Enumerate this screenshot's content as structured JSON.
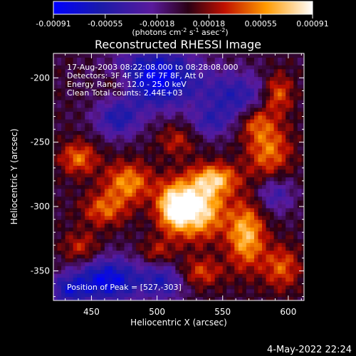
{
  "chart_data": {
    "type": "heatmap",
    "title": "Reconstructed RHESSI Image",
    "xlabel": "Heliocentric X (arcsec)",
    "ylabel": "Heliocentric Y (arcsec)",
    "xlim": [
      421,
      612
    ],
    "ylim": [
      -373,
      -181
    ],
    "x_ticks": [
      450,
      500,
      550,
      600
    ],
    "y_ticks": [
      -200,
      -250,
      -300,
      -350
    ],
    "colorbar": {
      "ticks": [
        "-0.00091",
        "-0.00055",
        "-0.00018",
        "0.00018",
        "0.00055",
        "0.00091"
      ],
      "range": [
        -0.00091,
        0.00091
      ],
      "unit_label": "(photons cm",
      "unit_sup1": "-2",
      "unit_mid1": " s",
      "unit_sup2": "-1",
      "unit_mid2": " asec",
      "unit_sup3": "-2",
      "unit_end": ")"
    },
    "info_lines": [
      "17-Aug-2003 08:22:08.000 to 08:28:08.000",
      "Detectors: 3F 4F 5F 6F 7F 8F, Att 0",
      "Energy Range: 12.0 - 25.0 keV",
      "Clean     Total counts: 2.44E+03"
    ],
    "peak_label": "Position of Peak = [527,-303]",
    "peak": [
      527,
      -303
    ],
    "grid": false,
    "sources": [
      {
        "x": 531,
        "y": -301,
        "amp": 0.00091,
        "sx": 14,
        "sy": 16
      },
      {
        "x": 512,
        "y": -300,
        "amp": 0.00072,
        "sx": 9,
        "sy": 13
      },
      {
        "x": 568,
        "y": -322,
        "amp": 0.0007,
        "sx": 10,
        "sy": 18
      },
      {
        "x": 545,
        "y": -278,
        "amp": 0.0006,
        "sx": 12,
        "sy": 8
      },
      {
        "x": 478,
        "y": -281,
        "amp": 0.00058,
        "sx": 13,
        "sy": 11
      },
      {
        "x": 440,
        "y": -262,
        "amp": 0.0005,
        "sx": 10,
        "sy": 9
      },
      {
        "x": 460,
        "y": -302,
        "amp": 0.00046,
        "sx": 12,
        "sy": 9
      },
      {
        "x": 585,
        "y": -256,
        "amp": 0.00052,
        "sx": 12,
        "sy": 16
      },
      {
        "x": 592,
        "y": -212,
        "amp": 0.0005,
        "sx": 8,
        "sy": 11
      },
      {
        "x": 575,
        "y": -233,
        "amp": 0.00042,
        "sx": 9,
        "sy": 9
      },
      {
        "x": 533,
        "y": -351,
        "amp": 0.0004,
        "sx": 12,
        "sy": 8
      },
      {
        "x": 595,
        "y": -347,
        "amp": 0.00045,
        "sx": 10,
        "sy": 12
      },
      {
        "x": 442,
        "y": -332,
        "amp": 0.00035,
        "sx": 10,
        "sy": 9
      },
      {
        "x": 470,
        "y": -205,
        "amp": 0.0003,
        "sx": 9,
        "sy": 8
      },
      {
        "x": 515,
        "y": -248,
        "amp": 0.0003,
        "sx": 10,
        "sy": 9
      },
      {
        "x": 500,
        "y": -335,
        "amp": 0.0003,
        "sx": 9,
        "sy": 7
      },
      {
        "x": 500,
        "y": -200,
        "amp": -0.00085,
        "sx": 22,
        "sy": 16
      },
      {
        "x": 470,
        "y": -232,
        "amp": -0.0005,
        "sx": 12,
        "sy": 10
      },
      {
        "x": 560,
        "y": -215,
        "amp": -0.0005,
        "sx": 18,
        "sy": 14
      },
      {
        "x": 462,
        "y": -357,
        "amp": -0.0008,
        "sx": 18,
        "sy": 12
      },
      {
        "x": 505,
        "y": -358,
        "amp": -0.0005,
        "sx": 12,
        "sy": 10
      },
      {
        "x": 590,
        "y": -290,
        "amp": -0.0004,
        "sx": 10,
        "sy": 10
      },
      {
        "x": 432,
        "y": -365,
        "amp": -0.0005,
        "sx": 10,
        "sy": 8
      },
      {
        "x": 540,
        "y": -235,
        "amp": -0.00035,
        "sx": 10,
        "sy": 8
      }
    ]
  },
  "footer": {
    "timestamp": "4-May-2022 22:24"
  }
}
